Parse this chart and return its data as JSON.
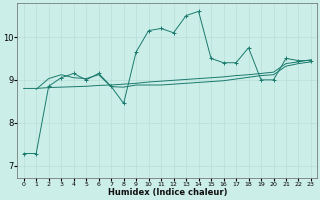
{
  "xlabel": "Humidex (Indice chaleur)",
  "bg_color": "#cceee8",
  "grid_color": "#b8ddd8",
  "line_color": "#1a7a6e",
  "xlim": [
    -0.5,
    23.5
  ],
  "ylim": [
    6.7,
    10.8
  ],
  "xticks": [
    0,
    1,
    2,
    3,
    4,
    5,
    6,
    7,
    8,
    9,
    10,
    11,
    12,
    13,
    14,
    15,
    16,
    17,
    18,
    19,
    20,
    21,
    22,
    23
  ],
  "yticks": [
    7,
    8,
    9,
    10
  ],
  "jagged_x": [
    0,
    1,
    2,
    3,
    4,
    5,
    6,
    7,
    8,
    9,
    10,
    11,
    12,
    13,
    14,
    15,
    16,
    17,
    18,
    19,
    20,
    21,
    22,
    23
  ],
  "jagged_y": [
    7.28,
    7.28,
    8.85,
    9.05,
    9.15,
    9.0,
    9.15,
    8.85,
    8.45,
    9.65,
    10.15,
    10.2,
    10.1,
    10.5,
    10.6,
    9.5,
    9.4,
    9.4,
    9.75,
    9.0,
    9.0,
    9.5,
    9.45,
    9.45
  ],
  "smooth1_x": [
    0,
    1,
    2,
    3,
    4,
    5,
    6,
    7,
    8,
    9,
    10,
    11,
    12,
    13,
    14,
    15,
    16,
    17,
    18,
    19,
    20,
    21,
    22,
    23
  ],
  "smooth1_y": [
    8.8,
    8.8,
    8.82,
    8.83,
    8.84,
    8.85,
    8.87,
    8.88,
    8.9,
    8.92,
    8.95,
    8.97,
    8.99,
    9.01,
    9.03,
    9.05,
    9.07,
    9.1,
    9.12,
    9.15,
    9.18,
    9.38,
    9.42,
    9.47
  ],
  "smooth2_x": [
    1,
    2,
    3,
    4,
    5,
    6,
    7,
    8,
    9,
    10,
    11,
    12,
    13,
    14,
    15,
    16,
    17,
    18,
    19,
    20,
    21,
    22,
    23
  ],
  "smooth2_y": [
    8.78,
    9.03,
    9.12,
    9.05,
    9.03,
    9.12,
    8.84,
    8.83,
    8.88,
    8.88,
    8.88,
    8.9,
    8.92,
    8.94,
    8.96,
    8.98,
    9.02,
    9.06,
    9.1,
    9.12,
    9.32,
    9.38,
    9.42
  ]
}
